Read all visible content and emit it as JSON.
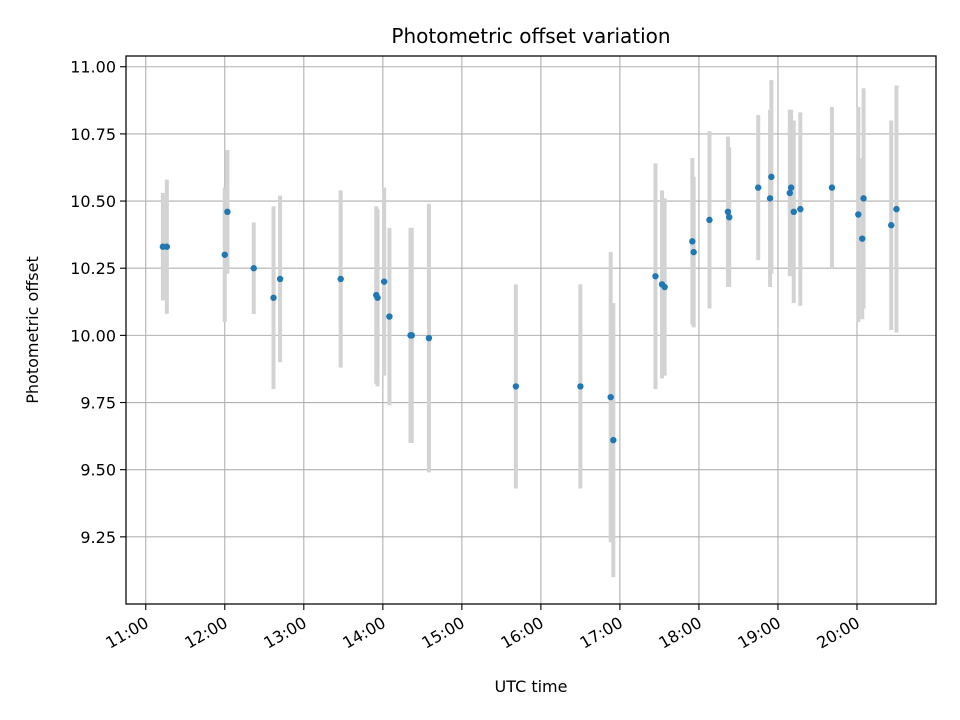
{
  "chart_data": {
    "type": "scatter",
    "title": "Photometric offset variation",
    "xlabel": "UTC time",
    "ylabel": "Photometric offset",
    "x_unit": "hours UTC",
    "xlim": [
      "10:45",
      "21:00"
    ],
    "ylim": [
      9.0,
      11.04
    ],
    "grid": true,
    "x_ticks": [
      "11:00",
      "12:00",
      "13:00",
      "14:00",
      "15:00",
      "16:00",
      "17:00",
      "18:00",
      "19:00",
      "20:00"
    ],
    "y_ticks": [
      "9.25",
      "9.50",
      "9.75",
      "10.00",
      "10.25",
      "10.50",
      "10.75",
      "11.00"
    ],
    "colors": {
      "marker": "#1f77b4",
      "errorbar": "#d3d3d3",
      "grid": "#b0b0b0"
    },
    "series": [
      {
        "marker": "point",
        "points": [
          {
            "x": "11:13",
            "y": 10.33,
            "yerr": 0.2
          },
          {
            "x": "11:16",
            "y": 10.33,
            "yerr": 0.25
          },
          {
            "x": "12:00",
            "y": 10.3,
            "yerr": 0.25
          },
          {
            "x": "12:02",
            "y": 10.46,
            "yerr": 0.23
          },
          {
            "x": "12:22",
            "y": 10.25,
            "yerr": 0.17
          },
          {
            "x": "12:37",
            "y": 10.14,
            "yerr": 0.34
          },
          {
            "x": "12:42",
            "y": 10.21,
            "yerr": 0.31
          },
          {
            "x": "13:28",
            "y": 10.21,
            "yerr": 0.33
          },
          {
            "x": "13:55",
            "y": 10.15,
            "yerr": 0.33
          },
          {
            "x": "13:56",
            "y": 10.14,
            "yerr": 0.33
          },
          {
            "x": "14:01",
            "y": 10.2,
            "yerr": 0.35
          },
          {
            "x": "14:05",
            "y": 10.07,
            "yerr": 0.33
          },
          {
            "x": "14:21",
            "y": 10.0,
            "yerr": 0.4
          },
          {
            "x": "14:22",
            "y": 10.0,
            "yerr": 0.4
          },
          {
            "x": "14:35",
            "y": 9.99,
            "yerr": 0.5
          },
          {
            "x": "15:41",
            "y": 9.81,
            "yerr": 0.38
          },
          {
            "x": "16:30",
            "y": 9.81,
            "yerr": 0.38
          },
          {
            "x": "16:53",
            "y": 9.77,
            "yerr": 0.54
          },
          {
            "x": "16:55",
            "y": 9.61,
            "yerr": 0.51
          },
          {
            "x": "17:27",
            "y": 10.22,
            "yerr": 0.42
          },
          {
            "x": "17:32",
            "y": 10.19,
            "yerr": 0.35
          },
          {
            "x": "17:34",
            "y": 10.18,
            "yerr": 0.33
          },
          {
            "x": "17:55",
            "y": 10.35,
            "yerr": 0.31
          },
          {
            "x": "17:56",
            "y": 10.31,
            "yerr": 0.28
          },
          {
            "x": "18:08",
            "y": 10.43,
            "yerr": 0.33
          },
          {
            "x": "18:22",
            "y": 10.46,
            "yerr": 0.28
          },
          {
            "x": "18:23",
            "y": 10.44,
            "yerr": 0.26
          },
          {
            "x": "18:45",
            "y": 10.55,
            "yerr": 0.27
          },
          {
            "x": "18:54",
            "y": 10.51,
            "yerr": 0.33
          },
          {
            "x": "18:55",
            "y": 10.59,
            "yerr": 0.36
          },
          {
            "x": "19:09",
            "y": 10.53,
            "yerr": 0.31
          },
          {
            "x": "19:10",
            "y": 10.55,
            "yerr": 0.29
          },
          {
            "x": "19:12",
            "y": 10.46,
            "yerr": 0.34
          },
          {
            "x": "19:17",
            "y": 10.47,
            "yerr": 0.36
          },
          {
            "x": "19:41",
            "y": 10.55,
            "yerr": 0.3
          },
          {
            "x": "20:01",
            "y": 10.45,
            "yerr": 0.4
          },
          {
            "x": "20:04",
            "y": 10.36,
            "yerr": 0.3
          },
          {
            "x": "20:05",
            "y": 10.51,
            "yerr": 0.41
          },
          {
            "x": "20:26",
            "y": 10.41,
            "yerr": 0.39
          },
          {
            "x": "20:30",
            "y": 10.47,
            "yerr": 0.46
          }
        ]
      }
    ]
  }
}
